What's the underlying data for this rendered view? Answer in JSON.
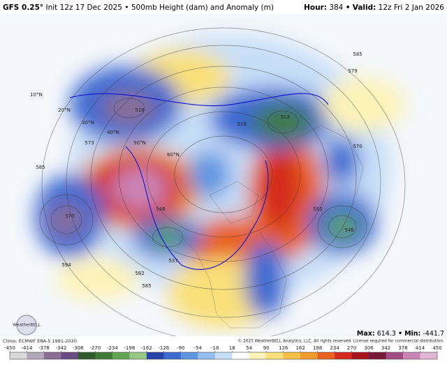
{
  "header": {
    "model": "GFS 0.25°",
    "init": "Init 12z 17 Dec 2025",
    "sep1": "•",
    "product": "500mb Height (dam) and Anomaly (m)",
    "hour_label": "Hour:",
    "hour": "384",
    "sep2": "•",
    "valid_label": "Valid:",
    "valid": "12z Fri 2 Jan 2026"
  },
  "map_labels": [
    "10°N",
    "20°N",
    "30°N",
    "40°N",
    "50°N",
    "60°N",
    "573",
    "585",
    "570",
    "546",
    "537",
    "582",
    "585",
    "516",
    "519",
    "513",
    "546",
    "555",
    "570",
    "585",
    "579",
    "594"
  ],
  "footer": {
    "climo": "Climo: ECMWF ERA-5 1991-2020",
    "copyright": "© 2025 WeatherBELL Analytics, LLC. All rights reserved. License required for commercial distribution.",
    "max_label": "Max:",
    "max": "614.3",
    "sep": "•",
    "min_label": "Min:",
    "min": "-441.7",
    "logo": "WeatherBELL"
  },
  "colorbar": {
    "ticks": [
      -450,
      -414,
      -378,
      -342,
      -306,
      -270,
      -234,
      -198,
      -162,
      -126,
      -90,
      -54,
      -18,
      18,
      54,
      90,
      126,
      162,
      198,
      234,
      270,
      306,
      342,
      378,
      414,
      450
    ],
    "colors": [
      "#d9d9d9",
      "#b0a8b8",
      "#8a6e95",
      "#6b4b82",
      "#2f5a2c",
      "#3f7a3a",
      "#62a453",
      "#96c886",
      "#2743a8",
      "#3c6ad1",
      "#5f95e1",
      "#93bdf0",
      "#c7def8",
      "#ffffff",
      "#fdf3b8",
      "#f9e07a",
      "#f6c046",
      "#f29a2e",
      "#e8611f",
      "#d42b1e",
      "#a8141c",
      "#7a1a3a",
      "#a24a83",
      "#c983b5",
      "#e3b6d6"
    ]
  }
}
